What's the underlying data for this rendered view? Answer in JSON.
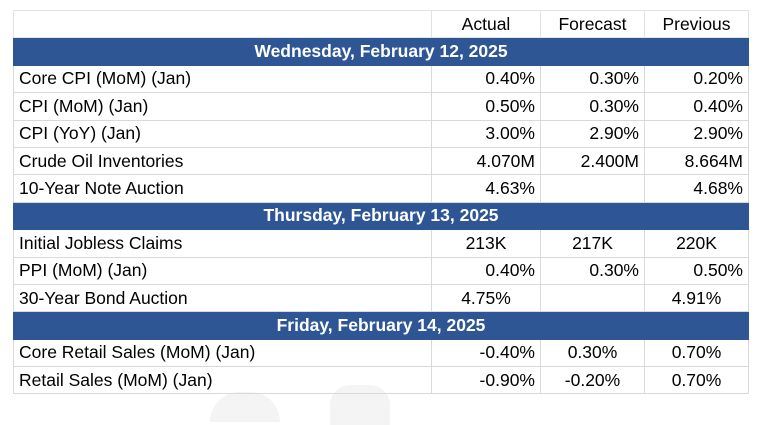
{
  "columns": [
    "Actual",
    "Forecast",
    "Previous"
  ],
  "sections": [
    {
      "date": "Wednesday, February 12, 2025",
      "rows": [
        {
          "label": "Core CPI (MoM) (Jan)",
          "actual": "0.40%",
          "forecast": "0.30%",
          "previous": "0.20%"
        },
        {
          "label": "CPI (MoM) (Jan)",
          "actual": "0.50%",
          "forecast": "0.30%",
          "previous": "0.40%"
        },
        {
          "label": "CPI (YoY) (Jan)",
          "actual": "3.00%",
          "forecast": "2.90%",
          "previous": "2.90%"
        },
        {
          "label": "Crude Oil Inventories",
          "actual": "4.070M",
          "forecast": "2.400M",
          "previous": "8.664M"
        },
        {
          "label": "10-Year Note Auction",
          "actual": "4.63%",
          "forecast": "",
          "previous": "4.68%"
        }
      ]
    },
    {
      "date": "Thursday, February 13, 2025",
      "rows": [
        {
          "label": "Initial Jobless Claims",
          "actual": "213K",
          "forecast": "217K",
          "previous": "220K"
        },
        {
          "label": "PPI (MoM) (Jan)",
          "actual": "0.40%",
          "forecast": "0.30%",
          "previous": "0.50%"
        },
        {
          "label": "30-Year Bond Auction",
          "actual": "4.75%",
          "forecast": "",
          "previous": "4.91%"
        }
      ]
    },
    {
      "date": "Friday, February 14, 2025",
      "rows": [
        {
          "label": "Core Retail Sales (MoM) (Jan)",
          "actual": "-0.40%",
          "forecast": "0.30%",
          "previous": "0.70%"
        },
        {
          "label": "Retail Sales (MoM) (Jan)",
          "actual": "-0.90%",
          "forecast": "-0.20%",
          "previous": "0.70%"
        }
      ]
    }
  ]
}
